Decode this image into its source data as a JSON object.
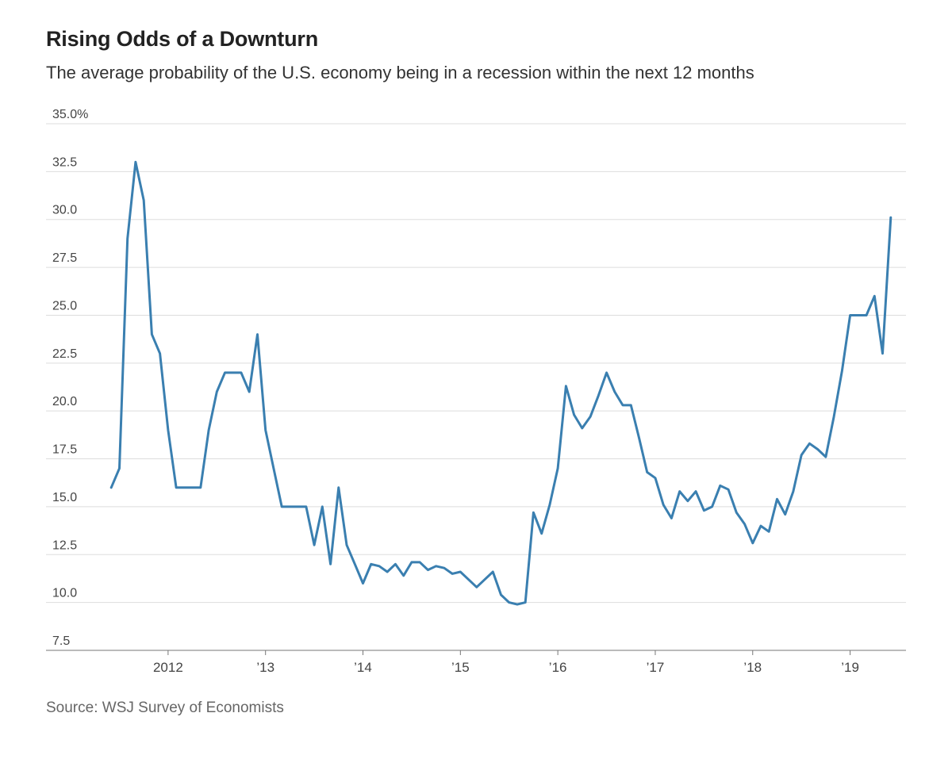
{
  "header": {
    "title": "Rising Odds of a Downturn",
    "subtitle": "The average probability of the U.S. economy being in a recession within the next 12 months"
  },
  "footer": {
    "source": "Source: WSJ Survey of Economists"
  },
  "colors": {
    "line": "#3a7fb0",
    "grid": "#dddddd",
    "axis": "#777777",
    "tick_text": "#444444"
  },
  "chart_data": {
    "type": "line",
    "title": "Rising Odds of a Downturn",
    "subtitle": "The average probability of the U.S. economy being in a recession within the next 12 months",
    "xlabel": "",
    "ylabel": "",
    "ylim": [
      7.5,
      35.0
    ],
    "xlim": [
      "2011-05",
      "2019-07"
    ],
    "grid": true,
    "y_ticks": [
      {
        "value": 35.0,
        "label": "35.0%"
      },
      {
        "value": 32.5,
        "label": "32.5"
      },
      {
        "value": 30.0,
        "label": "30.0"
      },
      {
        "value": 27.5,
        "label": "27.5"
      },
      {
        "value": 25.0,
        "label": "25.0"
      },
      {
        "value": 22.5,
        "label": "22.5"
      },
      {
        "value": 20.0,
        "label": "20.0"
      },
      {
        "value": 17.5,
        "label": "17.5"
      },
      {
        "value": 15.0,
        "label": "15.0"
      },
      {
        "value": 12.5,
        "label": "12.5"
      },
      {
        "value": 10.0,
        "label": "10.0"
      },
      {
        "value": 7.5,
        "label": "7.5"
      }
    ],
    "x_ticks": [
      {
        "value": "2012-01",
        "label": "2012"
      },
      {
        "value": "2013-01",
        "label": "’13"
      },
      {
        "value": "2014-01",
        "label": "’14"
      },
      {
        "value": "2015-01",
        "label": "’15"
      },
      {
        "value": "2016-01",
        "label": "’16"
      },
      {
        "value": "2017-01",
        "label": "’17"
      },
      {
        "value": "2018-01",
        "label": "’18"
      },
      {
        "value": "2019-01",
        "label": "’19"
      }
    ],
    "series": [
      {
        "x": [
          "2011-06",
          "2011-07",
          "2011-08",
          "2011-09",
          "2011-10",
          "2011-11",
          "2011-12",
          "2012-01",
          "2012-02",
          "2012-03",
          "2012-04",
          "2012-05",
          "2012-06",
          "2012-07",
          "2012-08",
          "2012-09",
          "2012-10",
          "2012-11",
          "2012-12",
          "2013-01",
          "2013-02",
          "2013-03",
          "2013-04",
          "2013-05",
          "2013-06",
          "2013-07",
          "2013-08",
          "2013-09",
          "2013-10",
          "2013-11",
          "2013-12",
          "2014-01",
          "2014-02",
          "2014-03",
          "2014-04",
          "2014-05",
          "2014-06",
          "2014-07",
          "2014-08",
          "2014-09",
          "2014-10",
          "2014-11",
          "2014-12",
          "2015-01",
          "2015-02",
          "2015-03",
          "2015-04",
          "2015-05",
          "2015-06",
          "2015-07",
          "2015-08",
          "2015-09",
          "2015-10",
          "2015-11",
          "2015-12",
          "2016-01",
          "2016-02",
          "2016-03",
          "2016-04",
          "2016-05",
          "2016-06",
          "2016-07",
          "2016-08",
          "2016-09",
          "2016-10",
          "2016-11",
          "2016-12",
          "2017-01",
          "2017-02",
          "2017-03",
          "2017-04",
          "2017-05",
          "2017-06",
          "2017-07",
          "2017-08",
          "2017-09",
          "2017-10",
          "2017-11",
          "2017-12",
          "2018-01",
          "2018-02",
          "2018-03",
          "2018-04",
          "2018-05",
          "2018-06",
          "2018-07",
          "2018-08",
          "2018-09",
          "2018-10",
          "2018-11",
          "2018-12",
          "2019-01",
          "2019-02",
          "2019-03",
          "2019-04",
          "2019-05",
          "2019-06"
        ],
        "values": [
          16.0,
          17.0,
          29.0,
          33.0,
          31.0,
          24.0,
          23.0,
          19.0,
          16.0,
          16.0,
          16.0,
          16.0,
          19.0,
          21.0,
          22.0,
          22.0,
          22.0,
          21.0,
          24.0,
          19.0,
          17.0,
          15.0,
          15.0,
          15.0,
          15.0,
          13.0,
          15.0,
          12.0,
          16.0,
          13.0,
          12.0,
          11.0,
          12.0,
          11.9,
          11.6,
          12.0,
          11.4,
          12.1,
          12.1,
          11.7,
          11.9,
          11.8,
          11.5,
          11.6,
          11.2,
          10.8,
          11.2,
          11.6,
          10.4,
          10.0,
          9.9,
          10.0,
          14.7,
          13.6,
          15.1,
          17.0,
          21.3,
          19.8,
          19.1,
          19.7,
          20.8,
          22.0,
          21.0,
          20.3,
          20.3,
          18.6,
          16.8,
          16.5,
          15.1,
          14.4,
          15.8,
          15.3,
          15.8,
          14.8,
          15.0,
          16.1,
          15.9,
          14.7,
          14.1,
          13.1,
          14.0,
          13.7,
          15.4,
          14.6,
          15.8,
          17.7,
          18.3,
          18.0,
          17.6,
          19.7,
          22.1,
          25.0,
          25.0,
          25.0,
          26.0,
          23.0,
          30.1
        ]
      }
    ]
  }
}
